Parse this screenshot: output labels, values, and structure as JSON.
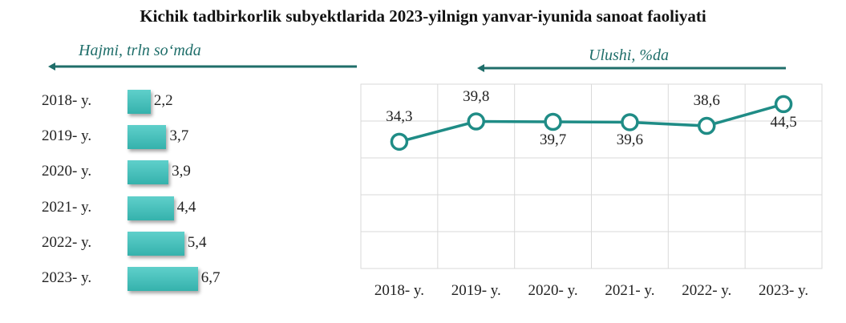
{
  "title": "Kichik tadbirkorlik subyektlarida 2023-yilnign yanvar-iyunida sanoat faoliyati",
  "colors": {
    "accent": "#1f8c86",
    "bar": "#3fbcb6",
    "grid": "#d9d9d9"
  },
  "chart_data": [
    {
      "type": "bar",
      "orientation": "horizontal",
      "subtitle": "Hajmi, trln so‘mda",
      "categories": [
        "2018- y.",
        "2019- y.",
        "2020- y.",
        "2021- y.",
        "2022- y.",
        "2023- y."
      ],
      "values": [
        2.2,
        3.7,
        3.9,
        4.4,
        5.4,
        6.7
      ],
      "value_labels": [
        "2,2",
        "3,7",
        "3,9",
        "4,4",
        "5,4",
        "6,7"
      ]
    },
    {
      "type": "line",
      "subtitle": "Ulushi, %da",
      "categories": [
        "2018- y.",
        "2019- y.",
        "2020- y.",
        "2021- y.",
        "2022- y.",
        "2023- y."
      ],
      "values": [
        34.3,
        39.8,
        39.7,
        39.6,
        38.6,
        44.5
      ],
      "value_labels": [
        "34,3",
        "39,8",
        "39,7",
        "39,6",
        "38,6",
        "44,5"
      ],
      "grid": true
    }
  ]
}
